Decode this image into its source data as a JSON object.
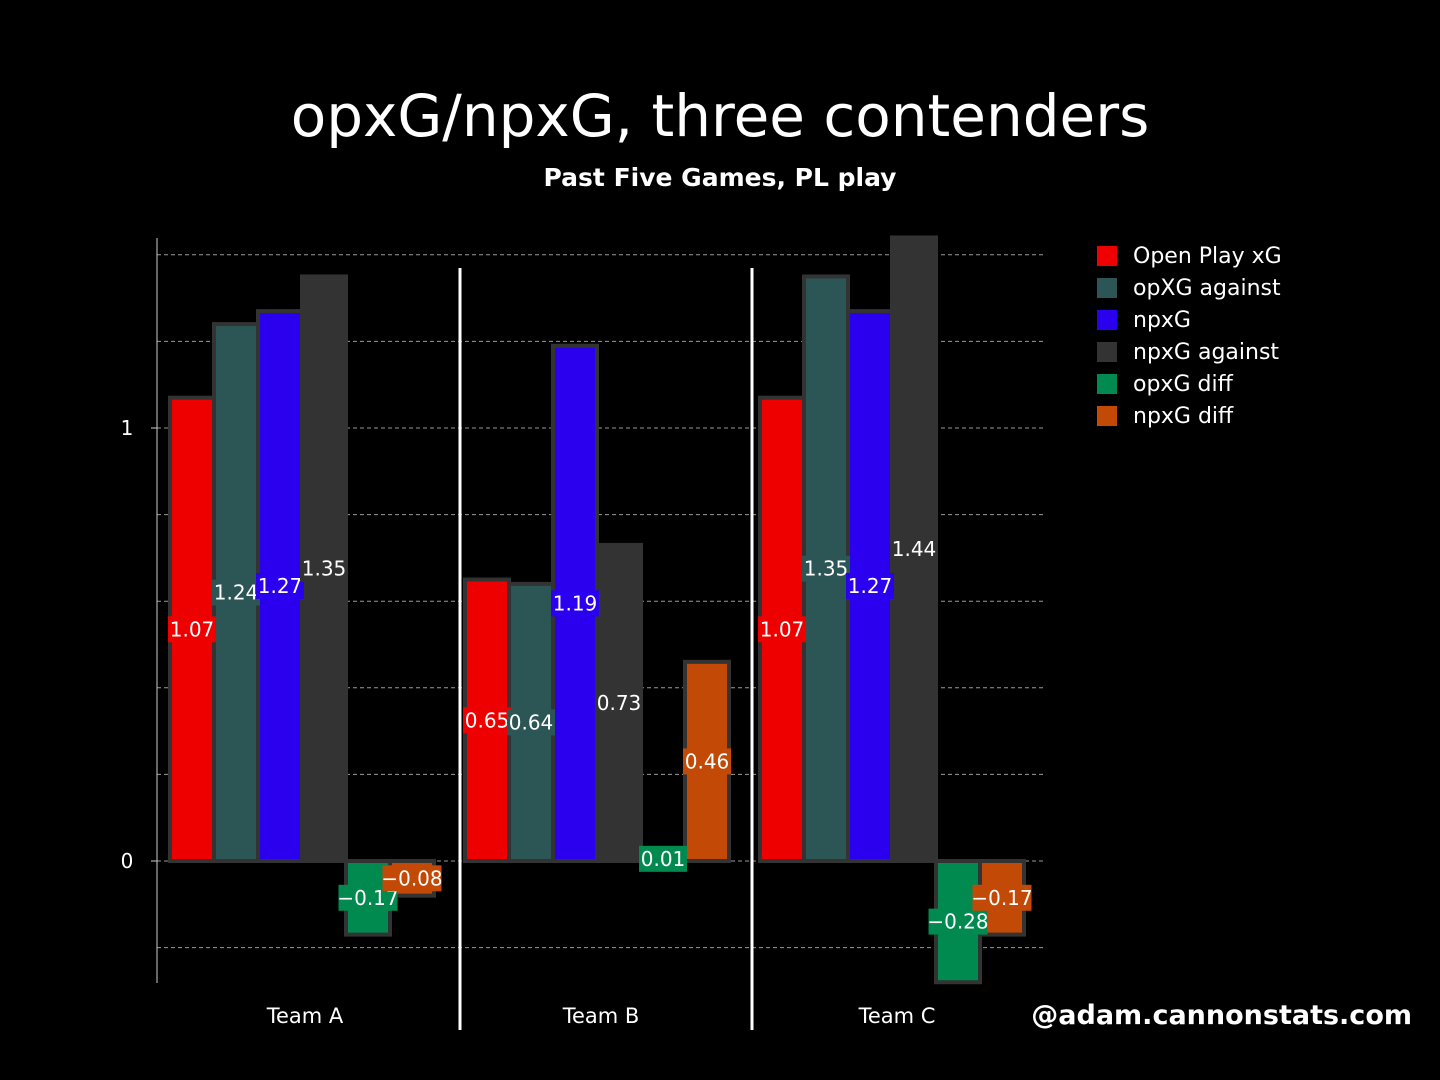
{
  "chart_data": {
    "type": "bar",
    "title": "opxG/npxG, three contenders",
    "subtitle": "Past Five Games, PL play",
    "categories": [
      "Team A",
      "Team B",
      "Team C"
    ],
    "series": [
      {
        "name": "Open Play xG",
        "color": "#ee0000",
        "values": [
          1.07,
          0.65,
          1.07
        ],
        "labels": [
          "1.07",
          "0.65",
          "1.07"
        ]
      },
      {
        "name": "opXG against",
        "color": "#2c5555",
        "values": [
          1.24,
          0.64,
          1.35
        ],
        "labels": [
          "1.24",
          "0.64",
          "1.35"
        ]
      },
      {
        "name": "npxG",
        "color": "#2a00ee",
        "values": [
          1.27,
          1.19,
          1.27
        ],
        "labels": [
          "1.27",
          "1.19",
          "1.27"
        ]
      },
      {
        "name": "npxG against",
        "color": "#333333",
        "values": [
          1.35,
          0.73,
          1.44
        ],
        "labels": [
          "1.35",
          "0.73",
          "1.44"
        ]
      },
      {
        "name": "opxG diff",
        "color": "#008a4f",
        "values": [
          -0.17,
          0.01,
          -0.28
        ],
        "labels": [
          "−0.17",
          "0.01",
          "−0.28"
        ]
      },
      {
        "name": "npxG diff",
        "color": "#c24a06",
        "values": [
          -0.08,
          0.46,
          -0.17
        ],
        "labels": [
          "−0.08",
          "0.46",
          "−0.17"
        ]
      }
    ],
    "yticks": [
      0,
      1
    ],
    "ytick_labels": [
      "0",
      "1"
    ],
    "ylim": [
      -0.28,
      1.44
    ],
    "grid": true,
    "grid_step": 0.2,
    "legend": "right"
  },
  "credit": "@adam.cannonstats.com"
}
